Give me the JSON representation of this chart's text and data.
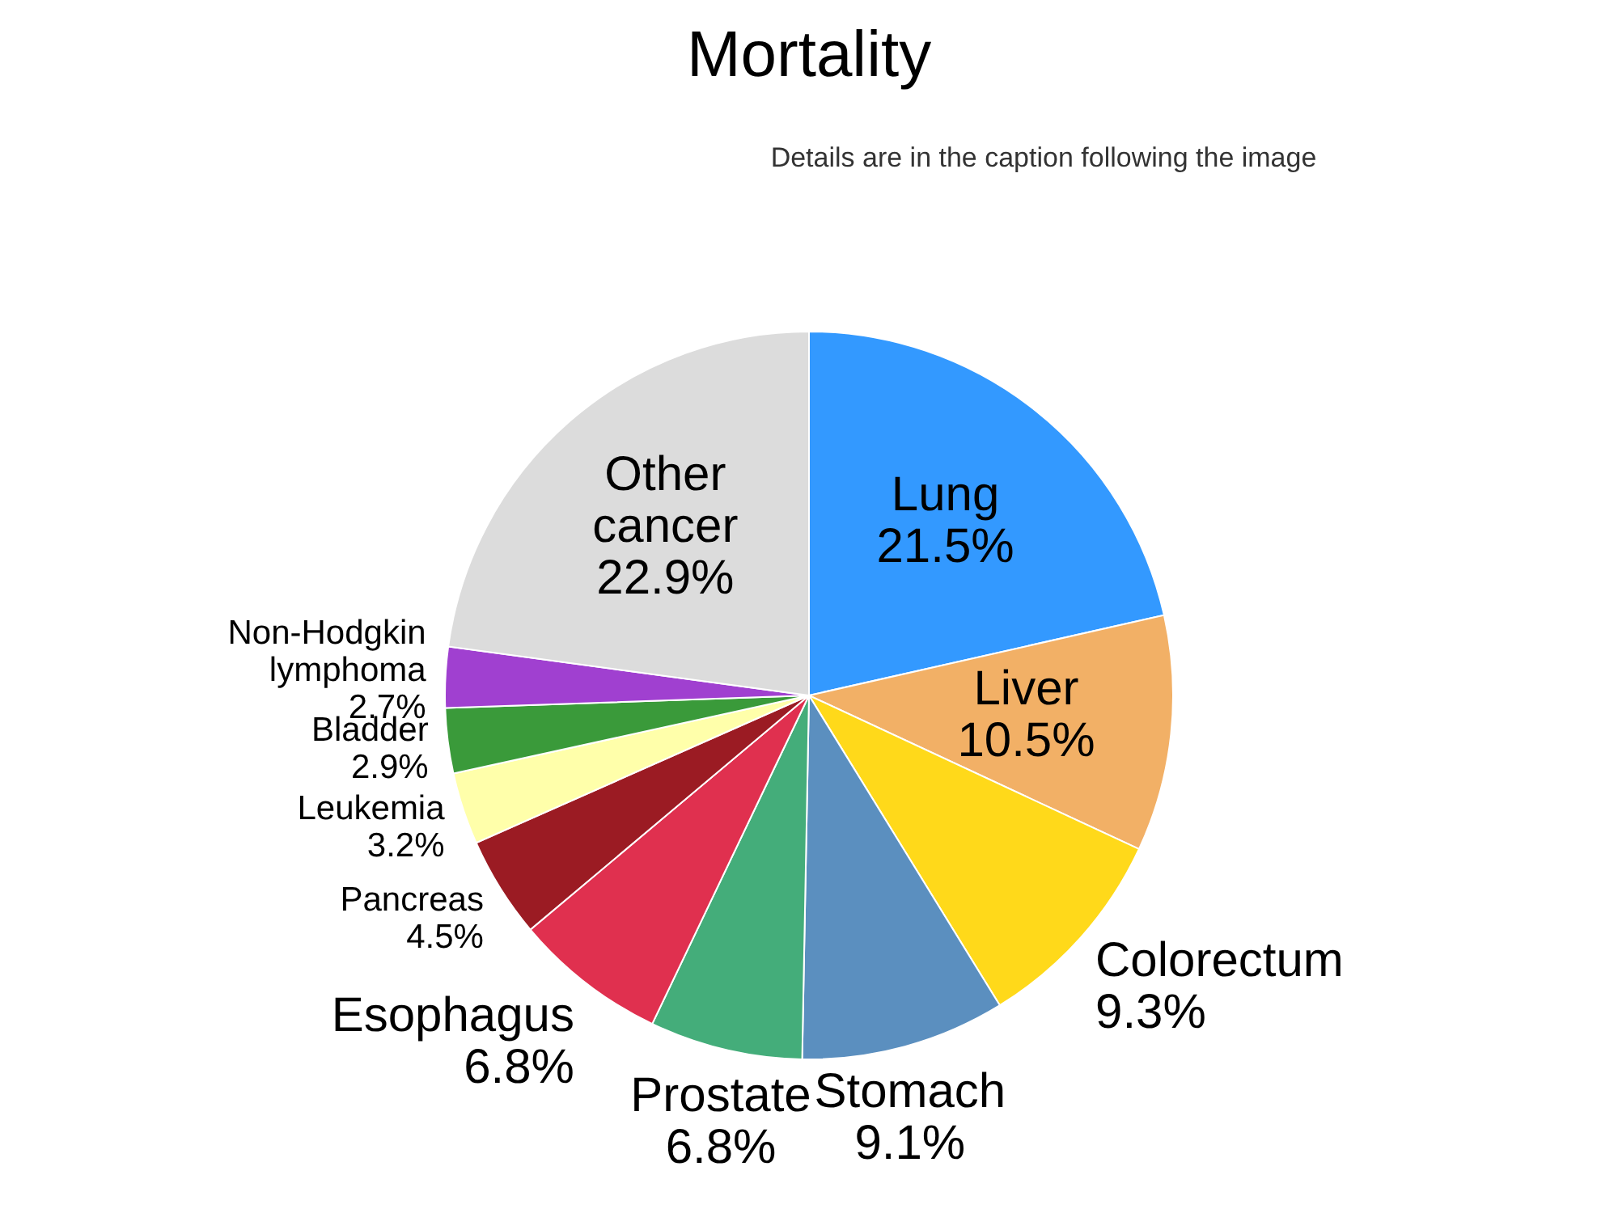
{
  "chart_data": {
    "type": "pie",
    "title": "Mortality",
    "annotations": [
      "Details are in the caption following the image"
    ],
    "categories": [
      "Lung",
      "Liver",
      "Colorectum",
      "Stomach",
      "Prostate",
      "Esophagus",
      "Pancreas",
      "Leukemia",
      "Bladder",
      "Non-Hodgkin lymphoma",
      "Other cancer"
    ],
    "values": [
      21.5,
      10.5,
      9.3,
      9.1,
      6.8,
      6.8,
      4.5,
      3.2,
      2.9,
      2.7,
      22.9
    ],
    "value_labels": [
      "21.5%",
      "10.5%",
      "9.3%",
      "9.1%",
      "6.8%",
      "6.8%",
      "4.5%",
      "3.2%",
      "2.9%",
      "2.7%",
      "22.9%"
    ],
    "colors": [
      "#3399ff",
      "#f2b066",
      "#ffd91a",
      "#5b8fbf",
      "#44ad7a",
      "#e0304f",
      "#9b1b23",
      "#ffffaa",
      "#3a9a3a",
      "#a040d0",
      "#dcdcdc"
    ],
    "legend": false
  }
}
